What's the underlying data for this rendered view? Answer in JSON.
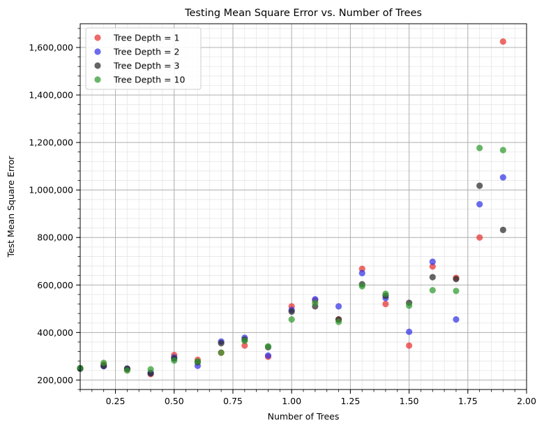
{
  "chart_data": {
    "type": "scatter",
    "title": "Testing Mean Square Error vs. Number of Trees",
    "xlabel": "Number of Trees",
    "ylabel": "Test Mean Square Error",
    "xlim": [
      0.1,
      2.0
    ],
    "ylim": [
      160000,
      1700000
    ],
    "x_ticks": [
      0.25,
      0.5,
      0.75,
      1.0,
      1.25,
      1.5,
      1.75,
      2.0
    ],
    "x_tick_labels": [
      "0.25",
      "0.50",
      "0.75",
      "1.00",
      "1.25",
      "1.50",
      "1.75",
      "2.00"
    ],
    "y_ticks": [
      200000,
      400000,
      600000,
      800000,
      1000000,
      1200000,
      1400000,
      1600000
    ],
    "y_tick_labels": [
      "200,000",
      "400,000",
      "600,000",
      "800,000",
      "1,000,000",
      "1,200,000",
      "1,400,000",
      "1,600,000"
    ],
    "grid": true,
    "legend_position": "top-left",
    "series": [
      {
        "name": "Tree Depth = 1",
        "color": "#e8302e",
        "x": [
          0.1,
          0.2,
          0.3,
          0.4,
          0.5,
          0.6,
          0.7,
          0.8,
          0.9,
          1.0,
          1.1,
          1.2,
          1.3,
          1.4,
          1.5,
          1.6,
          1.7,
          1.8,
          1.9
        ],
        "y": [
          250000,
          265000,
          245000,
          225000,
          305000,
          285000,
          315000,
          345000,
          298000,
          510000,
          535000,
          455000,
          668000,
          520000,
          345000,
          678000,
          630000,
          800000,
          1625000
        ]
      },
      {
        "name": "Tree Depth = 2",
        "color": "#3232e6",
        "x": [
          0.1,
          0.2,
          0.3,
          0.4,
          0.5,
          0.6,
          0.7,
          0.8,
          0.9,
          1.0,
          1.1,
          1.2,
          1.3,
          1.4,
          1.5,
          1.6,
          1.7,
          1.8,
          1.9
        ],
        "y": [
          248000,
          258000,
          248000,
          230000,
          295000,
          260000,
          362000,
          378000,
          303000,
          495000,
          540000,
          510000,
          650000,
          545000,
          403000,
          698000,
          455000,
          940000,
          1053000
        ]
      },
      {
        "name": "Tree Depth = 3",
        "color": "#2a2a2a",
        "x": [
          0.1,
          0.2,
          0.3,
          0.4,
          0.5,
          0.6,
          0.7,
          0.8,
          0.9,
          1.0,
          1.1,
          1.2,
          1.3,
          1.4,
          1.5,
          1.6,
          1.7,
          1.8,
          1.9
        ],
        "y": [
          248000,
          260000,
          248000,
          228000,
          290000,
          275000,
          355000,
          370000,
          338000,
          488000,
          510000,
          455000,
          603000,
          555000,
          525000,
          633000,
          625000,
          1018000,
          832000
        ]
      },
      {
        "name": "Tree Depth = 10",
        "color": "#2e9a2e",
        "x": [
          0.1,
          0.2,
          0.3,
          0.4,
          0.5,
          0.6,
          0.7,
          0.8,
          0.9,
          1.0,
          1.1,
          1.2,
          1.3,
          1.4,
          1.5,
          1.6,
          1.7,
          1.8,
          1.9
        ],
        "y": [
          250000,
          272000,
          240000,
          245000,
          282000,
          278000,
          315000,
          365000,
          342000,
          455000,
          525000,
          445000,
          595000,
          563000,
          513000,
          578000,
          575000,
          1177000,
          1168000
        ]
      }
    ]
  }
}
